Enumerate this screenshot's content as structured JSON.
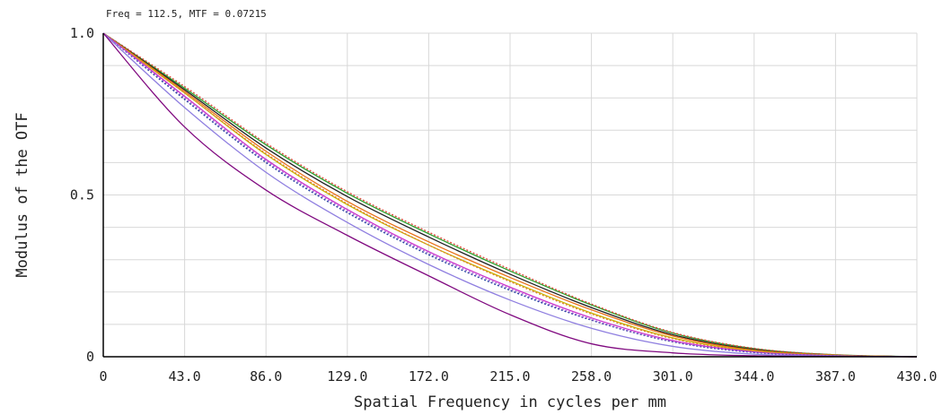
{
  "cursor_readout": "Freq = 112.5, MTF = 0.07215",
  "colors": {
    "grid": "#d8d8d8",
    "axis": "#000000"
  },
  "chart_data": {
    "type": "line",
    "title": "",
    "xlabel": "Spatial Frequency in cycles per mm",
    "ylabel": "Modulus of the OTF",
    "xlim": [
      0,
      430
    ],
    "ylim": [
      0,
      1.0
    ],
    "x_ticks": [
      0,
      43,
      86,
      129,
      172,
      215,
      258,
      301,
      344,
      387,
      430
    ],
    "x_tick_labels": [
      "0",
      "43.0",
      "86.0",
      "129.0",
      "172.0",
      "215.0",
      "258.0",
      "301.0",
      "344.0",
      "387.0",
      "430.0"
    ],
    "y_ticks": [
      0,
      0.5,
      1.0
    ],
    "y_tick_labels": [
      "0",
      "0.5",
      "1.0"
    ],
    "grid": true,
    "legend": "none",
    "x": [
      0,
      43,
      86,
      129,
      172,
      215,
      258,
      301,
      344,
      387,
      430
    ],
    "series": [
      {
        "color": "#2ca02c",
        "dash": "solid",
        "values": [
          1.0,
          0.83,
          0.655,
          0.505,
          0.38,
          0.265,
          0.16,
          0.073,
          0.025,
          0.006,
          0.0
        ]
      },
      {
        "color": "#e0453a",
        "dash": "dotted",
        "values": [
          1.0,
          0.835,
          0.66,
          0.51,
          0.385,
          0.27,
          0.163,
          0.075,
          0.026,
          0.006,
          0.0
        ]
      },
      {
        "color": "#222222",
        "dash": "solid",
        "values": [
          1.0,
          0.825,
          0.645,
          0.495,
          0.37,
          0.255,
          0.152,
          0.068,
          0.022,
          0.005,
          0.0
        ]
      },
      {
        "color": "#e8711a",
        "dash": "solid",
        "values": [
          1.0,
          0.82,
          0.635,
          0.48,
          0.355,
          0.245,
          0.145,
          0.064,
          0.02,
          0.005,
          0.0
        ]
      },
      {
        "color": "#c9b800",
        "dash": "solid",
        "values": [
          1.0,
          0.815,
          0.625,
          0.47,
          0.345,
          0.235,
          0.135,
          0.058,
          0.018,
          0.004,
          0.0
        ]
      },
      {
        "color": "#e07b39",
        "dash": "dotted",
        "values": [
          1.0,
          0.815,
          0.628,
          0.473,
          0.345,
          0.232,
          0.132,
          0.056,
          0.017,
          0.004,
          0.0
        ]
      },
      {
        "color": "#cc33cc",
        "dash": "solid",
        "values": [
          1.0,
          0.805,
          0.61,
          0.455,
          0.325,
          0.215,
          0.12,
          0.05,
          0.015,
          0.003,
          0.0
        ]
      },
      {
        "color": "#1f3f9f",
        "dash": "dotted",
        "values": [
          1.0,
          0.795,
          0.6,
          0.445,
          0.315,
          0.205,
          0.113,
          0.046,
          0.013,
          0.003,
          0.0
        ]
      },
      {
        "color": "#9b59d0",
        "dash": "dotted",
        "values": [
          1.0,
          0.8,
          0.605,
          0.45,
          0.32,
          0.21,
          0.115,
          0.047,
          0.014,
          0.003,
          0.0
        ]
      },
      {
        "color": "#8f7fe0",
        "dash": "solid",
        "values": [
          1.0,
          0.77,
          0.57,
          0.415,
          0.285,
          0.175,
          0.088,
          0.032,
          0.008,
          0.002,
          0.0
        ]
      },
      {
        "color": "#800a80",
        "dash": "solid",
        "values": [
          1.0,
          0.71,
          0.515,
          0.375,
          0.25,
          0.13,
          0.04,
          0.012,
          0.003,
          0.001,
          0.0
        ]
      }
    ]
  }
}
